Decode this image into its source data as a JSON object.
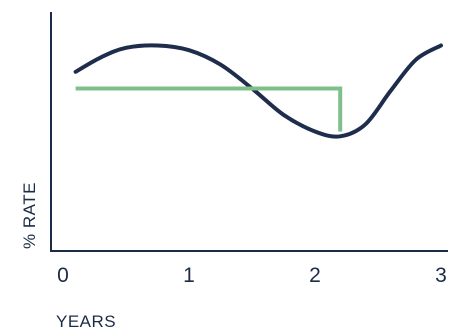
{
  "chart_data": {
    "type": "line",
    "title": "",
    "xlabel": "YEARS",
    "ylabel": "% RATE",
    "xlim": [
      0,
      3
    ],
    "ylim": [
      0,
      10
    ],
    "x_ticks": [
      "0",
      "1",
      "2",
      "3"
    ],
    "grid": false,
    "legend": "none",
    "series": [
      {
        "x": [
          0.1,
          0.3,
          0.5,
          0.75,
          1.0,
          1.25,
          1.5,
          1.75,
          2.0,
          2.2,
          2.4,
          2.6,
          2.8,
          3.0
        ],
        "values": [
          7.5,
          8.1,
          8.5,
          8.6,
          8.4,
          7.8,
          6.8,
          5.7,
          5.0,
          4.8,
          5.3,
          6.7,
          8.0,
          8.6
        ],
        "color": "#1f2d4d"
      },
      {
        "x": [
          0.1,
          2.2,
          2.2
        ],
        "values": [
          6.8,
          6.8,
          5.0
        ],
        "color": "#7fc08a"
      }
    ],
    "colors": {
      "axis": "#1d2b45",
      "text": "#1d2b45"
    }
  }
}
